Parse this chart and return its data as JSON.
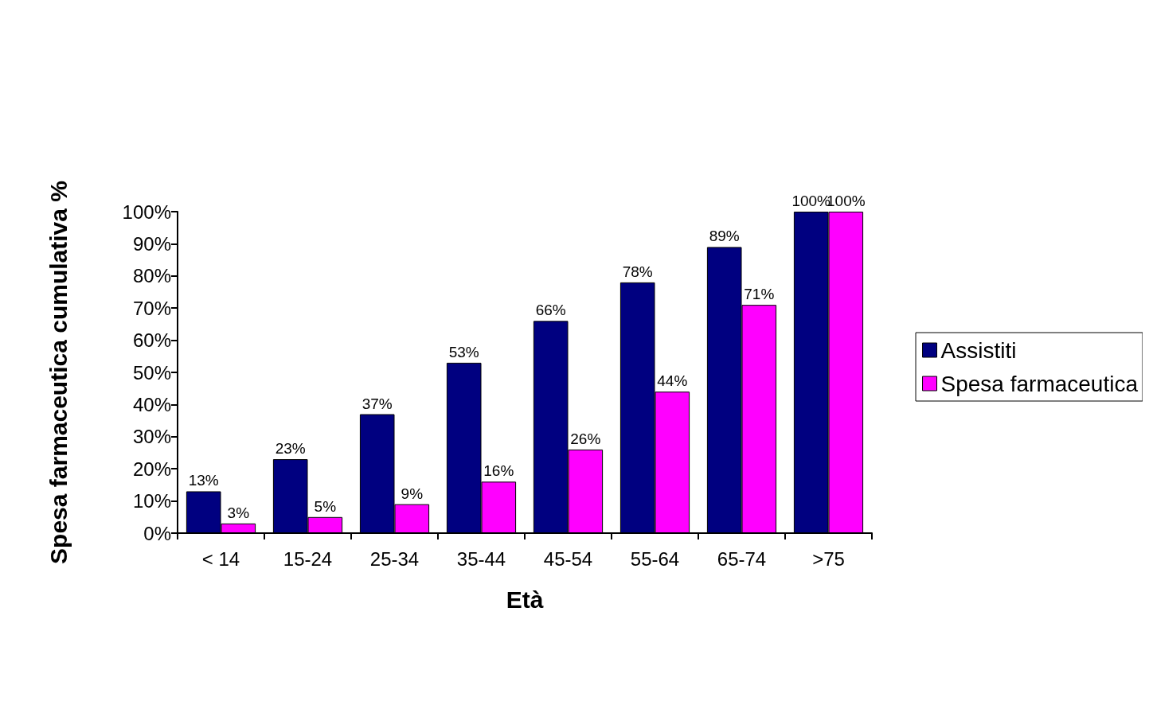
{
  "chart_data": {
    "type": "bar",
    "xlabel": "Età",
    "ylabel": "Spesa farmaceutica cumulativa %",
    "categories": [
      "< 14",
      "15-24",
      "25-34",
      "35-44",
      "45-54",
      "55-64",
      "65-74",
      ">75"
    ],
    "series": [
      {
        "name": "Assistiti",
        "color": "#000080",
        "values": [
          13,
          23,
          37,
          53,
          66,
          78,
          89,
          100
        ],
        "value_labels": [
          "13%",
          "23%",
          "37%",
          "53%",
          "66%",
          "78%",
          "89%",
          "100%"
        ]
      },
      {
        "name": "Spesa farmaceutica",
        "color": "#ff00ff",
        "values": [
          3,
          5,
          9,
          16,
          26,
          44,
          71,
          100
        ],
        "value_labels": [
          "3%",
          "5%",
          "9%",
          "16%",
          "26%",
          "44%",
          "71%",
          "100%"
        ]
      }
    ],
    "ylim": [
      0,
      100
    ],
    "yticks": [
      {
        "value": 0,
        "label": "0%"
      },
      {
        "value": 10,
        "label": "10%"
      },
      {
        "value": 20,
        "label": "20%"
      },
      {
        "value": 30,
        "label": "30%"
      },
      {
        "value": 40,
        "label": "40%"
      },
      {
        "value": 50,
        "label": "50%"
      },
      {
        "value": 60,
        "label": "60%"
      },
      {
        "value": 70,
        "label": "70%"
      },
      {
        "value": 80,
        "label": "80%"
      },
      {
        "value": 90,
        "label": "90%"
      },
      {
        "value": 100,
        "label": "100%"
      }
    ],
    "grid": false,
    "legend": "right"
  }
}
